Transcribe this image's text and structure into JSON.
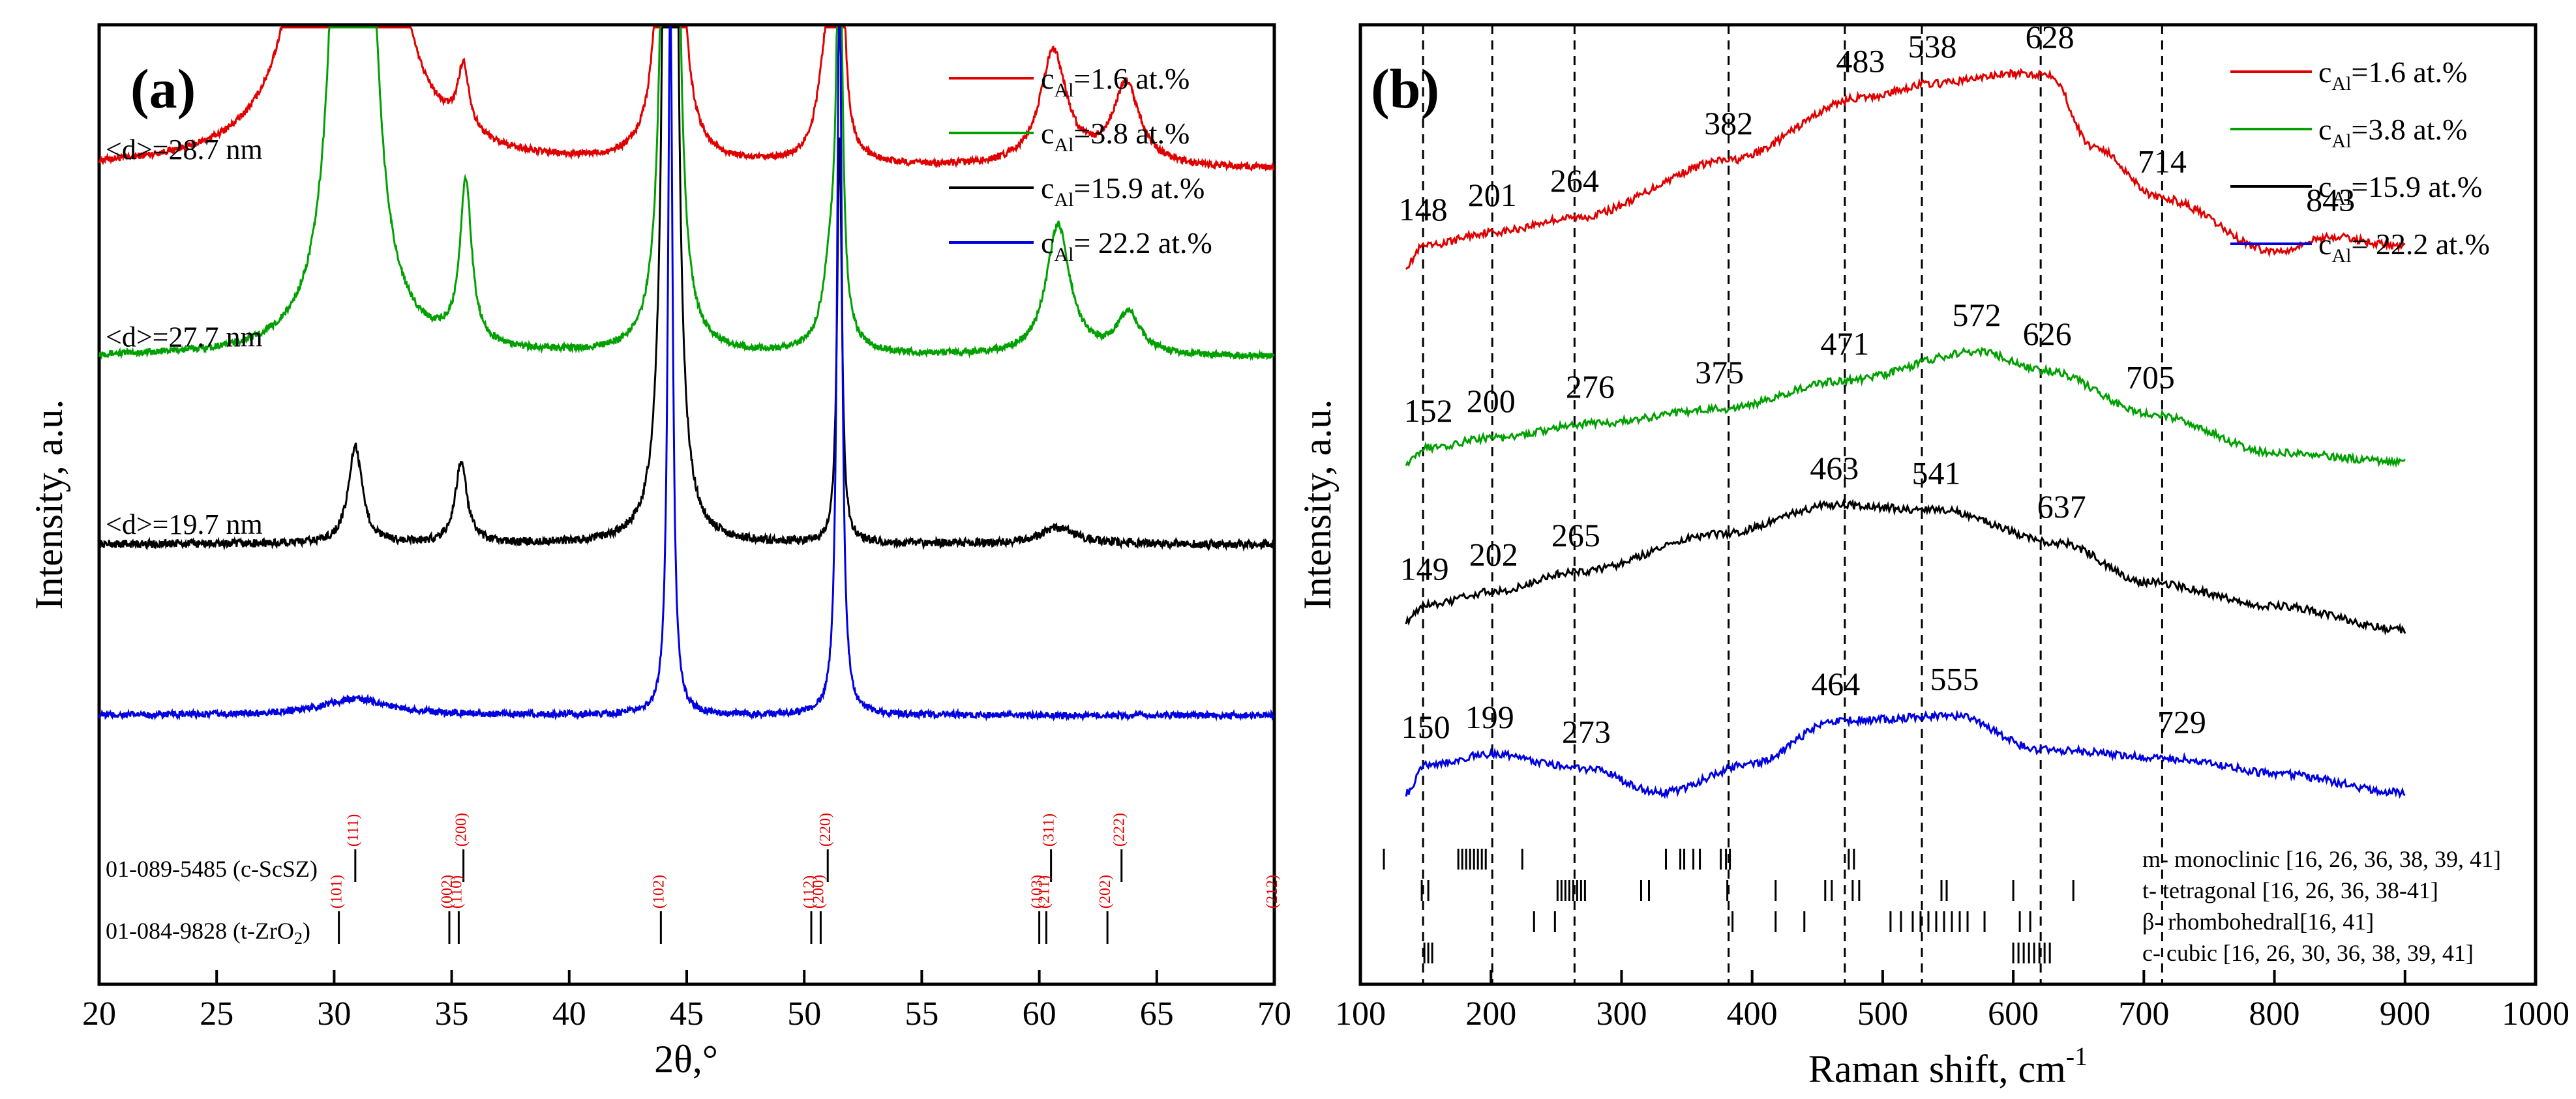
{
  "chart_data": [
    {
      "id": "a",
      "type": "line",
      "panel_label": "(a)",
      "xlabel": "2θ,°",
      "ylabel": "Intensity, a.u.",
      "xlim": [
        20,
        70
      ],
      "x_ticks": [
        20,
        25,
        30,
        35,
        40,
        45,
        50,
        55,
        60,
        65,
        70
      ],
      "legend_position": "top-right",
      "legend": [
        {
          "prefix": "c",
          "sub": "Al",
          "text": "=1.6 at.%",
          "color": "#e00000"
        },
        {
          "prefix": "c",
          "sub": "Al",
          "text": "=3.8 at.%",
          "color": "#00a000"
        },
        {
          "prefix": "c",
          "sub": "Al",
          "text": "=15.9 at.%",
          "color": "#000000"
        },
        {
          "prefix": "c",
          "sub": "Al",
          "text": "= 22.2 at.%",
          "color": "#0000e0"
        }
      ],
      "series": [
        {
          "name": "cAl=1.6 at.%",
          "color": "#e00000",
          "baseline": 1.0,
          "noise": 0.004,
          "peaks": [
            [
              30.2,
              6.0,
              0.35
            ],
            [
              30.9,
              6.0,
              0.3
            ],
            [
              35.5,
              0.08,
              0.3
            ],
            [
              44.3,
              6.0,
              0.12
            ],
            [
              51.0,
              0.15,
              0.45
            ],
            [
              51.5,
              0.7,
              0.12
            ],
            [
              60.6,
              0.14,
              0.7
            ],
            [
              63.7,
              0.1,
              0.7
            ]
          ],
          "d_label": "<d>=28.7 nm"
        },
        {
          "name": "cAl=3.8 at.%",
          "color": "#00a000",
          "baseline": 0.77,
          "noise": 0.004,
          "peaks": [
            [
              30.8,
              5.0,
              0.3
            ],
            [
              35.6,
              0.2,
              0.3
            ],
            [
              44.3,
              6.0,
              0.12
            ],
            [
              51.2,
              0.12,
              0.45
            ],
            [
              51.5,
              0.6,
              0.12
            ],
            [
              60.8,
              0.16,
              0.6
            ],
            [
              63.8,
              0.05,
              0.6
            ]
          ],
          "d_label": "<d>=27.7 nm"
        },
        {
          "name": "cAl=15.9 at.%",
          "color": "#000000",
          "baseline": 0.54,
          "noise": 0.005,
          "peaks": [
            [
              30.9,
              0.12,
              0.35
            ],
            [
              35.4,
              0.1,
              0.3
            ],
            [
              44.3,
              6.0,
              0.12
            ],
            [
              51.5,
              0.5,
              0.12
            ],
            [
              60.8,
              0.02,
              0.9
            ]
          ],
          "d_label": "<d>=19.7 nm"
        },
        {
          "name": "cAl= 22.2 at.%",
          "color": "#0000e0",
          "baseline": 0.33,
          "noise": 0.004,
          "peaks": [
            [
              30.9,
              0.02,
              1.8
            ],
            [
              44.3,
              0.9,
              0.12
            ],
            [
              51.5,
              0.95,
              0.12
            ]
          ],
          "d_label": ""
        }
      ],
      "references": [
        {
          "name": "01-089-5485 (c-ScSZ)",
          "lines": [
            {
              "x": 30.9,
              "hkl": "(111)"
            },
            {
              "x": 35.5,
              "hkl": "(200)"
            },
            {
              "x": 51.0,
              "hkl": "(220)"
            },
            {
              "x": 60.5,
              "hkl": "(311)"
            },
            {
              "x": 63.5,
              "hkl": "(222)"
            }
          ]
        },
        {
          "name": "01-084-9828 (t-ZrO2)",
          "lines": [
            {
              "x": 30.2,
              "hkl": "(101)"
            },
            {
              "x": 34.9,
              "hkl": "(002)"
            },
            {
              "x": 35.3,
              "hkl": "(110)"
            },
            {
              "x": 43.9,
              "hkl": "(102)"
            },
            {
              "x": 50.3,
              "hkl": "(112)"
            },
            {
              "x": 50.7,
              "hkl": "(200)"
            },
            {
              "x": 60.0,
              "hkl": "(103)"
            },
            {
              "x": 60.3,
              "hkl": "(211)"
            },
            {
              "x": 62.9,
              "hkl": "(202)"
            },
            {
              "x": 70.0,
              "hkl": "(212)"
            }
          ]
        }
      ]
    },
    {
      "id": "b",
      "type": "line",
      "panel_label": "(b)",
      "xlabel": "Raman shift, cm",
      "xlabel_sup": "-1",
      "ylabel": "Intensity, a.u.",
      "xlim": [
        100,
        1000
      ],
      "x_ticks": [
        100,
        200,
        300,
        400,
        500,
        600,
        700,
        800,
        900,
        1000
      ],
      "legend_position": "top-right",
      "legend": [
        {
          "prefix": "c",
          "sub": "Al",
          "text": "=1.6 at.%",
          "color": "#e00000"
        },
        {
          "prefix": "c",
          "sub": "Al",
          "text": "=3.8 at.%",
          "color": "#00a000"
        },
        {
          "prefix": "c",
          "sub": "Al",
          "text": "=15.9 at.%",
          "color": "#000000"
        },
        {
          "prefix": "c",
          "sub": "Al",
          "text": "= 22.2 at.%",
          "color": "#0000e0"
        }
      ],
      "dashed_lines": [
        148,
        201,
        264,
        382,
        471,
        530,
        621,
        714
      ],
      "series": [
        {
          "name": "cAl=1.6 at.%",
          "color": "#e00000",
          "curve": [
            [
              135,
              0.75
            ],
            [
              148,
              0.77
            ],
            [
              201,
              0.785
            ],
            [
              264,
              0.8
            ],
            [
              382,
              0.86
            ],
            [
              483,
              0.925
            ],
            [
              538,
              0.94
            ],
            [
              600,
              0.95
            ],
            [
              628,
              0.95
            ],
            [
              660,
              0.875
            ],
            [
              714,
              0.82
            ],
            [
              800,
              0.765
            ],
            [
              843,
              0.78
            ],
            [
              900,
              0.77
            ]
          ],
          "peaks": [
            {
              "x": 148,
              "label": "148"
            },
            {
              "x": 201,
              "label": "201"
            },
            {
              "x": 264,
              "label": "264"
            },
            {
              "x": 382,
              "label": "382"
            },
            {
              "x": 483,
              "label": "483"
            },
            {
              "x": 538,
              "label": "538"
            },
            {
              "x": 628,
              "label": "628"
            },
            {
              "x": 714,
              "label": "714"
            },
            {
              "x": 843,
              "label": "843"
            }
          ]
        },
        {
          "name": "cAl=3.8 at.%",
          "color": "#00a000",
          "curve": [
            [
              135,
              0.545
            ],
            [
              152,
              0.56
            ],
            [
              200,
              0.57
            ],
            [
              276,
              0.585
            ],
            [
              375,
              0.6
            ],
            [
              471,
              0.63
            ],
            [
              572,
              0.66
            ],
            [
              626,
              0.64
            ],
            [
              705,
              0.595
            ],
            [
              800,
              0.555
            ],
            [
              900,
              0.545
            ]
          ],
          "peaks": [
            {
              "x": 152,
              "label": "152"
            },
            {
              "x": 200,
              "label": "200"
            },
            {
              "x": 276,
              "label": "276"
            },
            {
              "x": 375,
              "label": "375"
            },
            {
              "x": 471,
              "label": "471"
            },
            {
              "x": 572,
              "label": "572"
            },
            {
              "x": 626,
              "label": "626"
            },
            {
              "x": 705,
              "label": "705"
            }
          ]
        },
        {
          "name": "cAl=15.9 at.%",
          "color": "#000000",
          "curve": [
            [
              135,
              0.38
            ],
            [
              149,
              0.395
            ],
            [
              202,
              0.41
            ],
            [
              265,
              0.43
            ],
            [
              375,
              0.47
            ],
            [
              463,
              0.5
            ],
            [
              541,
              0.495
            ],
            [
              637,
              0.46
            ],
            [
              700,
              0.42
            ],
            [
              800,
              0.395
            ],
            [
              900,
              0.37
            ]
          ],
          "peaks": [
            {
              "x": 149,
              "label": "149"
            },
            {
              "x": 202,
              "label": "202"
            },
            {
              "x": 265,
              "label": "265"
            },
            {
              "x": 463,
              "label": "463"
            },
            {
              "x": 541,
              "label": "541"
            },
            {
              "x": 637,
              "label": "637"
            }
          ]
        },
        {
          "name": "cAl= 22.2 at.%",
          "color": "#0000e0",
          "curve": [
            [
              135,
              0.2
            ],
            [
              150,
              0.23
            ],
            [
              199,
              0.24
            ],
            [
              273,
              0.225
            ],
            [
              330,
              0.2
            ],
            [
              400,
              0.23
            ],
            [
              464,
              0.275
            ],
            [
              555,
              0.28
            ],
            [
              621,
              0.245
            ],
            [
              729,
              0.235
            ],
            [
              800,
              0.22
            ],
            [
              900,
              0.2
            ]
          ],
          "peaks": [
            {
              "x": 150,
              "label": "150"
            },
            {
              "x": 199,
              "label": "199"
            },
            {
              "x": 273,
              "label": "273"
            },
            {
              "x": 464,
              "label": "464"
            },
            {
              "x": 555,
              "label": "555"
            },
            {
              "x": 729,
              "label": "729"
            }
          ]
        }
      ],
      "phase_references": [
        {
          "label": "m- monoclinic [16, 26, 36, 38, 39, 41]",
          "positions": [
            118,
            175,
            178,
            181,
            184,
            187,
            190,
            193,
            196,
            224,
            334,
            345,
            348,
            355,
            360,
            376,
            380,
            383,
            474,
            478
          ]
        },
        {
          "label": "t- tetragonal [16, 26, 36, 38-41]",
          "positions": [
            147,
            152,
            251,
            254,
            257,
            260,
            263,
            266,
            269,
            272,
            315,
            321,
            381,
            418,
            456,
            461,
            477,
            482,
            545,
            549,
            600,
            646
          ]
        },
        {
          "label": "β- rhombohedral[16, 41]",
          "positions": [
            233,
            249,
            385,
            418,
            440,
            506,
            514,
            523,
            529,
            535,
            541,
            547,
            553,
            559,
            565,
            578,
            605,
            613
          ]
        },
        {
          "label": "c- cubic [16, 26, 30, 36, 38, 39, 41]",
          "positions": [
            149,
            152,
            155,
            600,
            604,
            608,
            612,
            616,
            620,
            624,
            628
          ]
        }
      ]
    }
  ]
}
